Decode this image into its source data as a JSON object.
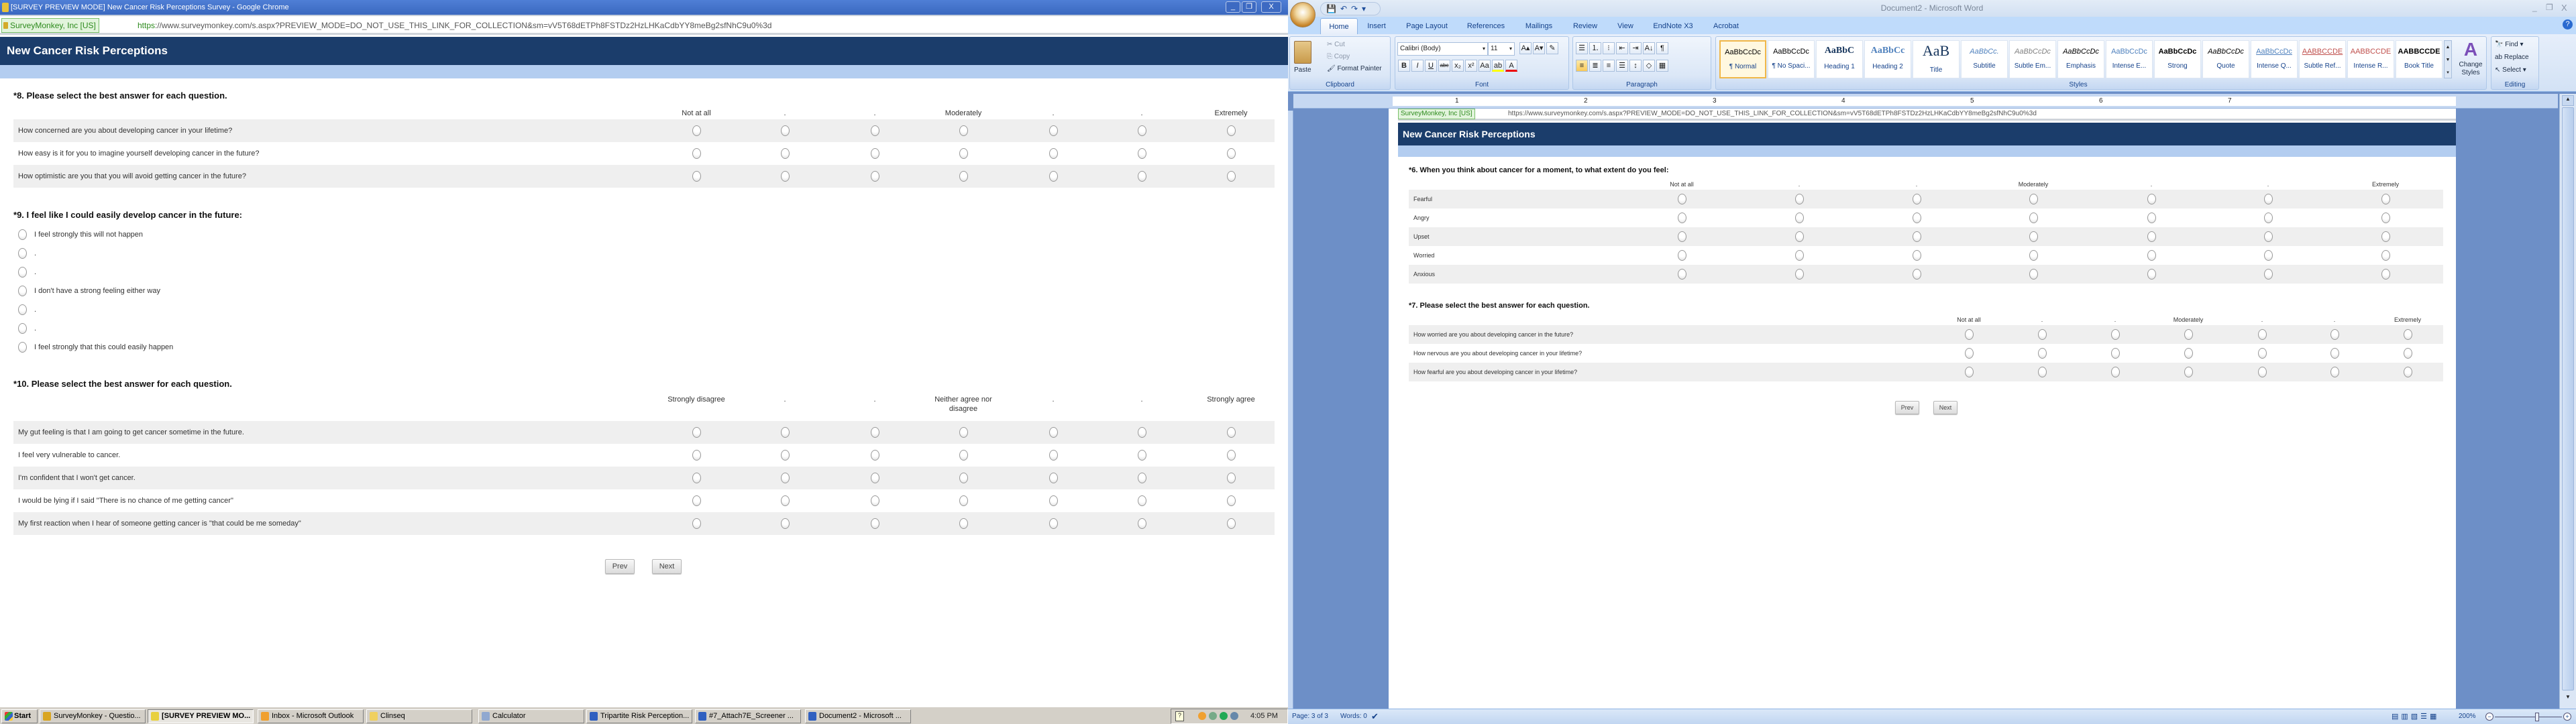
{
  "chrome": {
    "window_title": "[SURVEY PREVIEW MODE] New Cancer Risk Perceptions Survey - Google Chrome",
    "ev_badge": "SurveyMonkey, Inc [US]",
    "url_scheme": "https",
    "url_rest": "://www.surveymonkey.com/s.aspx?PREVIEW_MODE=DO_NOT_USE_THIS_LINK_FOR_COLLECTION&sm=vV5T68dETPh8FSTDz2HzLHKaCdbYY8meBg2sfNhC9u0%3d",
    "controls": {
      "minimize": "_",
      "restore": "❐",
      "close": "X"
    },
    "survey": {
      "header": "New Cancer Risk Perceptions",
      "q8": {
        "star": "*",
        "title": "8. Please select the best answer for each question.",
        "columns": [
          "Not at all",
          ".",
          ".",
          "Moderately",
          ".",
          ".",
          "Extremely"
        ],
        "rows": [
          "How concerned are you about developing cancer in your lifetime?",
          "How easy is it for you to imagine yourself developing cancer in the future?",
          "How optimistic are you that you will avoid getting cancer in the future?"
        ]
      },
      "q9": {
        "star": "*",
        "title": "9. I feel like I could easily develop cancer in the future:",
        "options": [
          "I feel strongly this will not happen",
          ".",
          ".",
          "I don't have a strong feeling either way",
          ".",
          ".",
          "I feel strongly that this could easily happen"
        ]
      },
      "q10": {
        "star": "*",
        "title": "10. Please select the best answer for each question.",
        "columns": [
          "Strongly disagree",
          ".",
          ".",
          "Neither agree nor disagree",
          ".",
          ".",
          "Strongly agree"
        ],
        "rows": [
          "My gut feeling is that I am going to get cancer sometime in the future.",
          "I feel very vulnerable to cancer.",
          "I'm confident that I won't get cancer.",
          "I would be lying if I said \"There is no chance of me getting cancer\"",
          "My first reaction when I hear of someone getting cancer is \"that could be me someday\""
        ]
      },
      "prev": "Prev",
      "next": "Next"
    }
  },
  "taskbar": {
    "start": "Start",
    "items": [
      {
        "label": "SurveyMonkey - Questio...",
        "color": "#d9a520",
        "active": false
      },
      {
        "label": "[SURVEY PREVIEW MO...",
        "color": "#e8d040",
        "active": true
      },
      {
        "label": "Inbox - Microsoft Outlook",
        "color": "#f0a030",
        "active": false
      },
      {
        "label": "Clinseq",
        "color": "#f0d060",
        "active": false
      },
      {
        "label": "Calculator",
        "color": "#90a8d0",
        "active": false
      },
      {
        "label": "Tripartite Risk Perception...",
        "color": "#3060c0",
        "active": false
      },
      {
        "label": "#7_Attach7E_Screener ...",
        "color": "#3060c0",
        "active": false
      },
      {
        "label": "Document2 - Microsoft ...",
        "color": "#3060c0",
        "active": false
      }
    ],
    "clock": "4:05 PM"
  },
  "word": {
    "window_title": "Document2 - Microsoft Word",
    "qat": "💾↶↷▾",
    "tabs": [
      "Home",
      "Insert",
      "Page Layout",
      "References",
      "Mailings",
      "Review",
      "View",
      "EndNote X3",
      "Acrobat"
    ],
    "active_tab": "Home",
    "clipboard": {
      "paste": "Paste",
      "cut": "Cut",
      "copy": "Copy",
      "format_painter": "Format Painter",
      "label": "Clipboard"
    },
    "font": {
      "name": "Calibri (Body)",
      "size": "11",
      "label": "Font",
      "row1": [
        "A▴",
        "A▾",
        "✎"
      ],
      "row2": [
        "B",
        "I",
        "U",
        "abc",
        "x₂",
        "x²",
        "Aa",
        "ab",
        "A"
      ]
    },
    "paragraph": {
      "label": "Paragraph",
      "row1": [
        "☰",
        "⒈",
        "⁝",
        "⇤",
        "⇥",
        "A↓",
        "¶"
      ],
      "row2": [
        "≡",
        "≣",
        "≡",
        "☰",
        "↕",
        "◇",
        "▦"
      ]
    },
    "styles": {
      "label": "Styles",
      "items": [
        {
          "preview": "AaBbCcDc",
          "name": "¶ Normal",
          "color": "#000"
        },
        {
          "preview": "AaBbCcDc",
          "name": "¶ No Spaci...",
          "color": "#000"
        },
        {
          "preview": "AaBbC",
          "name": "Heading 1",
          "color": "#17365d"
        },
        {
          "preview": "AaBbCc",
          "name": "Heading 2",
          "color": "#4f81bd"
        },
        {
          "preview": "AaB",
          "name": "Title",
          "color": "#17365d"
        },
        {
          "preview": "AaBbCc.",
          "name": "Subtitle",
          "color": "#4f81bd"
        },
        {
          "preview": "AaBbCcDc",
          "name": "Subtle Em...",
          "color": "#808080"
        },
        {
          "preview": "AaBbCcDc",
          "name": "Emphasis",
          "color": "#000"
        },
        {
          "preview": "AaBbCcDc",
          "name": "Intense E...",
          "color": "#4f81bd"
        },
        {
          "preview": "AaBbCcDc",
          "name": "Strong",
          "color": "#000"
        },
        {
          "preview": "AaBbCcDc",
          "name": "Quote",
          "color": "#000"
        },
        {
          "preview": "AaBbCcDc",
          "name": "Intense Q...",
          "color": "#4f81bd"
        },
        {
          "preview": "AABBCCDE",
          "name": "Subtle Ref...",
          "color": "#c0504d"
        },
        {
          "preview": "AABBCCDE",
          "name": "Intense R...",
          "color": "#c0504d"
        },
        {
          "preview": "AABBCCDE",
          "name": "Book Title",
          "color": "#000"
        }
      ],
      "selected": 0,
      "change_styles": "Change Styles"
    },
    "editing": {
      "label": "Editing",
      "find": "Find",
      "replace": "Replace",
      "select": "Select"
    },
    "ruler_numbers": [
      "1",
      "2",
      "3",
      "4",
      "5",
      "6",
      "7"
    ],
    "doc": {
      "ev_badge": "SurveyMonkey, Inc [US]",
      "url": "https://www.surveymonkey.com/s.aspx?PREVIEW_MODE=DO_NOT_USE_THIS_LINK_FOR_COLLECTION&sm=vV5T68dETPh8FSTDz2HzLHKaCdbYY8meBg2sfNhC9u0%3d",
      "header": "New Cancer Risk Perceptions",
      "q6": {
        "star": "*",
        "title": "6. When you think about cancer for a moment, to what extent do you feel:",
        "columns": [
          "Not at all",
          ".",
          ".",
          "Moderately",
          ".",
          ".",
          "Extremely"
        ],
        "rows": [
          "Fearful",
          "Angry",
          "Upset",
          "Worried",
          "Anxious"
        ]
      },
      "q7": {
        "star": "*",
        "title": "7. Please select the best answer for each question.",
        "columns": [
          "Not at all",
          ".",
          ".",
          "Moderately",
          ".",
          ".",
          "Extremely"
        ],
        "rows": [
          "How worried are you about developing cancer in the future?",
          "How nervous are you about developing cancer in your lifetime?",
          "How fearful are you about developing cancer in your lifetime?"
        ]
      },
      "prev": "Prev",
      "next": "Next"
    },
    "status": {
      "page": "Page: 3 of 3",
      "words": "Words: 0",
      "zoom": "200%",
      "zoom_percent": 200
    }
  }
}
